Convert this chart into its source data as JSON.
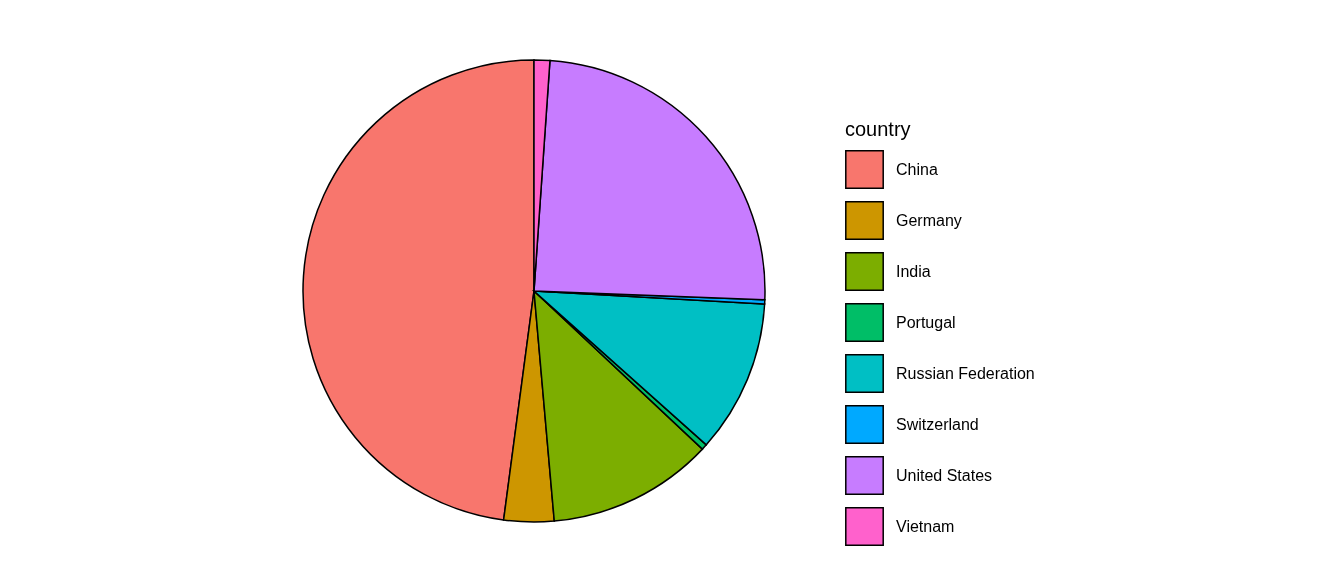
{
  "chart_data": {
    "type": "pie",
    "legend_title": "country",
    "categories": [
      "China",
      "Germany",
      "India",
      "Portugal",
      "Russian Federation",
      "Switzerland",
      "United States",
      "Vietnam"
    ],
    "values": [
      47.9,
      3.5,
      11.6,
      0.4,
      10.7,
      0.3,
      24.5,
      1.1
    ],
    "colors": [
      "#f8766d",
      "#cd9600",
      "#7cae00",
      "#00be67",
      "#00bfc4",
      "#00a9ff",
      "#c77cff",
      "#ff61cc"
    ],
    "legend": "right"
  }
}
